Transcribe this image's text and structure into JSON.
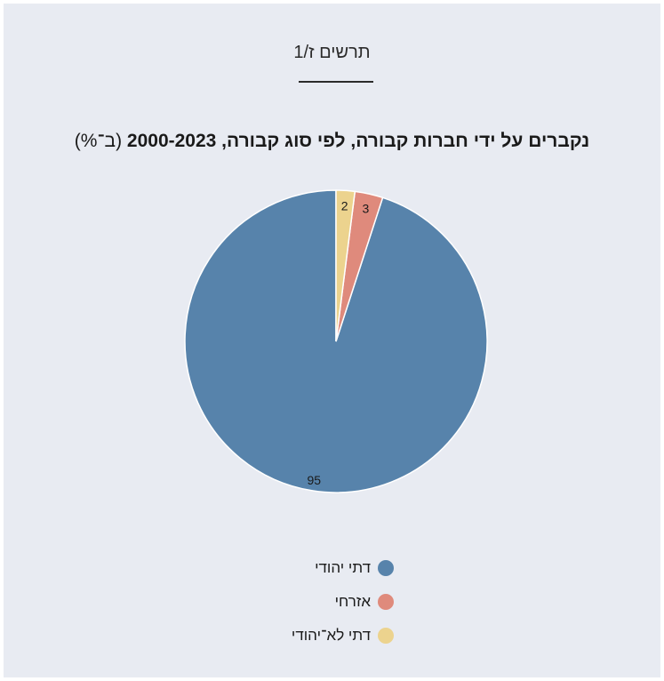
{
  "figure": {
    "label": "תרשים ז/1"
  },
  "chart_data": {
    "type": "pie",
    "title": "נקברים על ידי חברות קבורה, לפי סוג קבורה, 2000-2023",
    "unit_note": "(ב־%)",
    "slices": [
      {
        "name": "דתי יהודי",
        "value": 95,
        "label": "95",
        "color": "#5783ab"
      },
      {
        "name": "אזרחי",
        "value": 3,
        "label": "3",
        "color": "#df8a7c"
      },
      {
        "name": "דתי לא־יהודי",
        "value": 2,
        "label": "2",
        "color": "#ecd38e"
      }
    ],
    "legend_position": "bottom",
    "colors": {
      "background": "#e8ebf2",
      "text": "#1a1a1a"
    }
  }
}
